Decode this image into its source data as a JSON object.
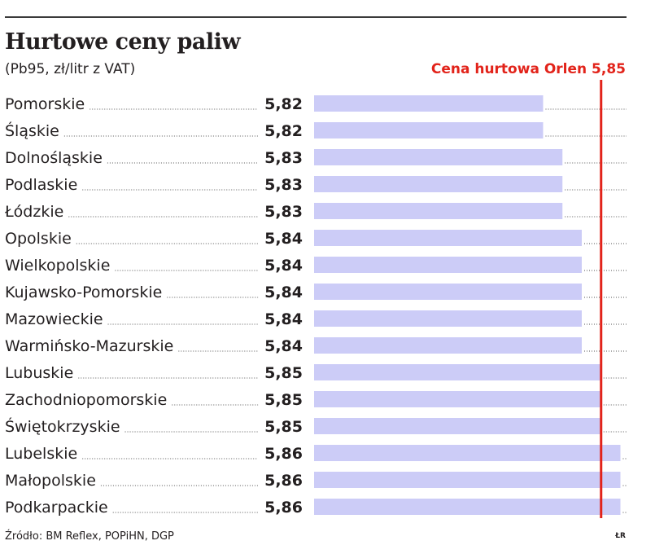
{
  "chart_data": {
    "type": "bar",
    "orientation": "horizontal",
    "title": "Hurtowe ceny paliw",
    "subtitle": "(Pb95, zł/litr z VAT)",
    "categories": [
      "Pomorskie",
      "Śląskie",
      "Dolnośląskie",
      "Podlaskie",
      "Łódzkie",
      "Opolskie",
      "Wielkopolskie",
      "Kujawsko-Pomorskie",
      "Mazowieckie",
      "Warmińsko-Mazurskie",
      "Lubuskie",
      "Zachodniopomorskie",
      "Świętokrzyskie",
      "Lubelskie",
      "Małopolskie",
      "Podkarpackie"
    ],
    "values": [
      5.82,
      5.82,
      5.83,
      5.83,
      5.83,
      5.84,
      5.84,
      5.84,
      5.84,
      5.84,
      5.85,
      5.85,
      5.85,
      5.86,
      5.86,
      5.86
    ],
    "value_labels": [
      "5,82",
      "5,82",
      "5,83",
      "5,83",
      "5,83",
      "5,84",
      "5,84",
      "5,84",
      "5,84",
      "5,84",
      "5,85",
      "5,85",
      "5,85",
      "5,86",
      "5,86",
      "5,86"
    ],
    "reference_line": {
      "value": 5.85,
      "label": "Cena hurtowa Orlen 5,85",
      "color": "#e2231a"
    },
    "bar_color": "#ccccf7",
    "grid": false,
    "legend": "none"
  },
  "source": "Źródło: BM Reflex, POPiHN, DGP",
  "credit": "ŁR"
}
